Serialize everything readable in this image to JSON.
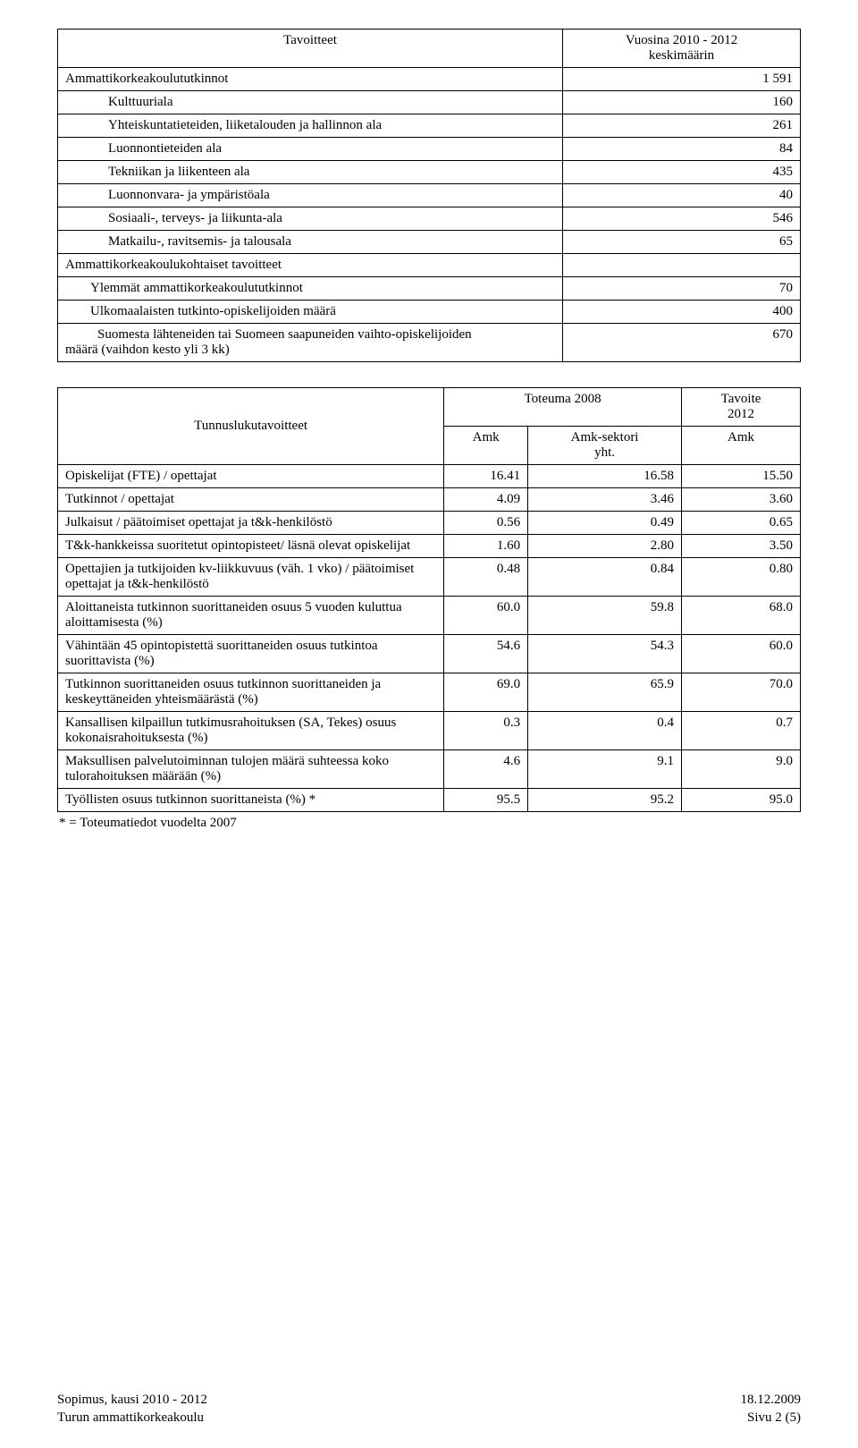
{
  "table1": {
    "header_left": "Tavoitteet",
    "header_right_line1": "Vuosina 2010 - 2012",
    "header_right_line2": "keskimäärin",
    "rows": [
      {
        "label": "Ammattikorkeakoulututkinnot",
        "value": "1 591",
        "indent": 0
      },
      {
        "label": "Kulttuuriala",
        "value": "160",
        "indent": 2
      },
      {
        "label": "Yhteiskuntatieteiden, liiketalouden ja hallinnon ala",
        "value": "261",
        "indent": 2
      },
      {
        "label": "Luonnontieteiden ala",
        "value": "84",
        "indent": 2
      },
      {
        "label": "Tekniikan ja liikenteen ala",
        "value": "435",
        "indent": 2
      },
      {
        "label": "Luonnonvara- ja ympäristöala",
        "value": "40",
        "indent": 2
      },
      {
        "label": "Sosiaali-, terveys- ja liikunta-ala",
        "value": "546",
        "indent": 2
      },
      {
        "label": "Matkailu-, ravitsemis- ja talousala",
        "value": "65",
        "indent": 2
      },
      {
        "label": "Ammattikorkeakoulukohtaiset tavoitteet",
        "value": "",
        "indent": 0
      },
      {
        "label": "Ylemmät ammattikorkeakoulututkinnot",
        "value": "70",
        "indent": 1
      },
      {
        "label": "Ulkomaalaisten tutkinto-opiskelijoiden määrä",
        "value": "400",
        "indent": 1
      },
      {
        "label": "Suomesta lähteneiden tai Suomeen saapuneiden vaihto-opiskelijoiden määrä (vaihdon kesto yli 3 kk)",
        "value": "670",
        "indent": 1,
        "wrap": true
      }
    ]
  },
  "table2": {
    "header_main": "Tunnuslukutavoitteet",
    "header_toteuma": "Toteuma 2008",
    "header_tavoite_line1": "Tavoite",
    "header_tavoite_line2": "2012",
    "subhead_amk1": "Amk",
    "subhead_sektori_line1": "Amk-sektori",
    "subhead_sektori_line2": "yht.",
    "subhead_amk2": "Amk",
    "rows": [
      {
        "label": "Opiskelijat (FTE) / opettajat",
        "c1": "16.41",
        "c2": "16.58",
        "c3": "15.50"
      },
      {
        "label": "Tutkinnot / opettajat",
        "c1": "4.09",
        "c2": "3.46",
        "c3": "3.60"
      },
      {
        "label": "Julkaisut / päätoimiset opettajat ja t&k-henkilöstö",
        "c1": "0.56",
        "c2": "0.49",
        "c3": "0.65"
      },
      {
        "label": "T&k-hankkeissa suoritetut opintopisteet/ läsnä olevat opiskelijat",
        "c1": "1.60",
        "c2": "2.80",
        "c3": "3.50"
      },
      {
        "label": "Opettajien ja tutkijoiden kv-liikkuvuus (väh. 1 vko) / päätoimiset opettajat ja t&k-henkilöstö",
        "c1": "0.48",
        "c2": "0.84",
        "c3": "0.80"
      },
      {
        "label": "Aloittaneista tutkinnon suorittaneiden osuus 5 vuoden kuluttua aloittamisesta (%)",
        "c1": "60.0",
        "c2": "59.8",
        "c3": "68.0"
      },
      {
        "label": "Vähintään 45 opintopistettä suorittaneiden osuus tutkintoa suorittavista (%)",
        "c1": "54.6",
        "c2": "54.3",
        "c3": "60.0"
      },
      {
        "label": "Tutkinnon suorittaneiden osuus tutkinnon suorittaneiden ja keskeyttäneiden yhteismäärästä (%)",
        "c1": "69.0",
        "c2": "65.9",
        "c3": "70.0"
      },
      {
        "label": "Kansallisen kilpaillun tutkimusrahoituksen (SA, Tekes) osuus kokonaisrahoituksesta (%)",
        "c1": "0.3",
        "c2": "0.4",
        "c3": "0.7"
      },
      {
        "label": "Maksullisen palvelutoiminnan tulojen määrä suhteessa koko tulorahoituksen määrään (%)",
        "c1": "4.6",
        "c2": "9.1",
        "c3": "9.0"
      },
      {
        "label": "Työllisten osuus tutkinnon suorittaneista (%) *",
        "c1": "95.5",
        "c2": "95.2",
        "c3": "95.0"
      }
    ],
    "footnote": "* = Toteumatiedot vuodelta 2007"
  },
  "footer": {
    "left_line1": "Sopimus, kausi 2010 - 2012",
    "left_line2": "Turun ammattikorkeakoulu",
    "right_line1": "18.12.2009",
    "right_line2": "Sivu 2 (5)"
  }
}
